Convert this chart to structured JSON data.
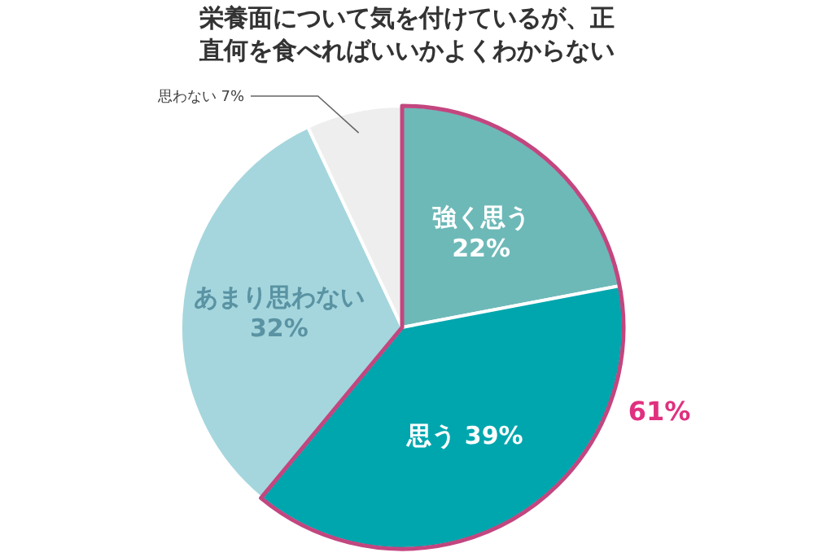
{
  "chart_data": {
    "type": "pie",
    "title": "栄養面について気を付けているが、正直何を食べればいいかよくわからない",
    "categories": [
      "強く思う",
      "思う",
      "あまり思わない",
      "思わない"
    ],
    "values": [
      22,
      39,
      32,
      7
    ],
    "colors": [
      "#6db9b8",
      "#00a6ae",
      "#a5d6dd",
      "#eeeeee"
    ],
    "value_labels": [
      "22%",
      "39%",
      "32%",
      "7%"
    ],
    "annotations": [
      "61%"
    ]
  }
}
